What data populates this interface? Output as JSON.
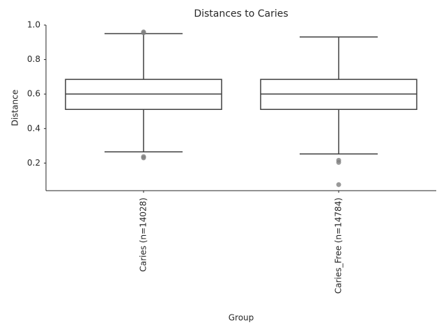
{
  "chart_data": {
    "type": "box",
    "title": "Distances to Caries",
    "x_label": "Group",
    "y_label": "Distance",
    "categories": [
      "Caries (n=14028)",
      "Caries_Free (n=14784)"
    ],
    "boxes": [
      {
        "whislo": 0.265,
        "q1": 0.511,
        "med": 0.6,
        "q3": 0.685,
        "whishi": 0.95,
        "fliers": [
          0.96,
          0.955,
          0.237,
          0.23
        ]
      },
      {
        "whislo": 0.253,
        "q1": 0.511,
        "med": 0.6,
        "q3": 0.685,
        "whishi": 0.931,
        "fliers": [
          0.216,
          0.204,
          0.075
        ]
      }
    ],
    "color": "#3f3f3f",
    "flier_color": "#7f7f7f",
    "ylim": [
      0.04,
      1.0
    ],
    "yticks": [
      0.2,
      0.4,
      0.6,
      0.8,
      {
        "value": 1.0,
        "label": "1.0"
      }
    ],
    "grid": false
  }
}
